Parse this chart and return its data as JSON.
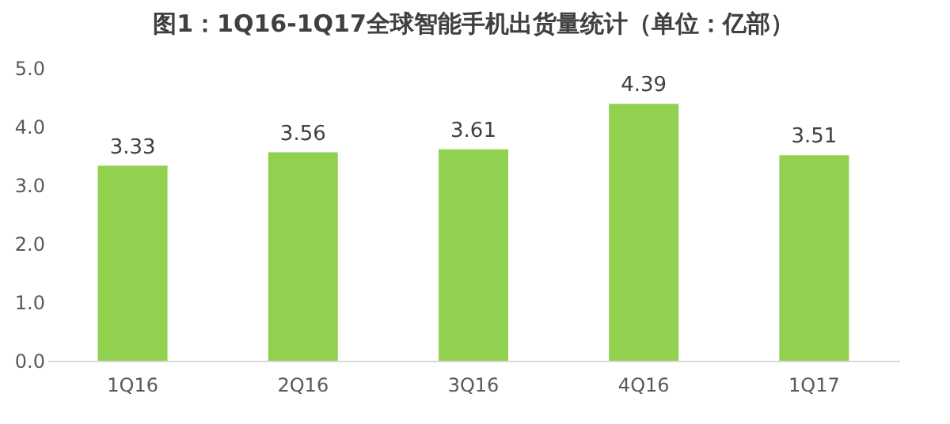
{
  "chart_data": {
    "type": "bar",
    "title": "图1：1Q16-1Q17全球智能手机出货量统计（单位：亿部）",
    "categories": [
      "1Q16",
      "2Q16",
      "3Q16",
      "4Q16",
      "1Q17"
    ],
    "values": [
      3.33,
      3.56,
      3.61,
      4.39,
      3.51
    ],
    "color": "#92d050",
    "ylim": [
      0,
      5
    ],
    "yticks": [
      {
        "value": 0,
        "label": "0.0"
      },
      {
        "value": 1,
        "label": "1.0"
      },
      {
        "value": 2,
        "label": "2.0"
      },
      {
        "value": 3,
        "label": "3.0"
      },
      {
        "value": 4,
        "label": "4.0"
      },
      {
        "value": 5,
        "label": "5.0"
      }
    ],
    "grid": false,
    "data_labels": true
  }
}
